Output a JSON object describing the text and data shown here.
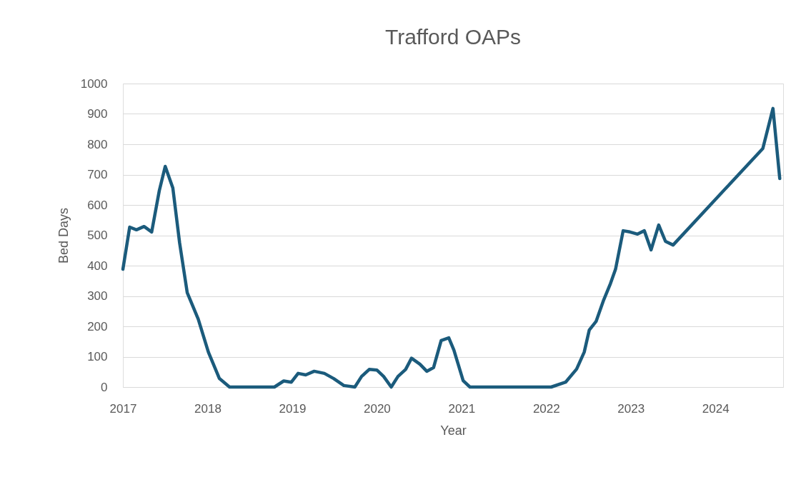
{
  "chart_data": {
    "type": "line",
    "title": "Trafford OAPs",
    "xlabel": "Year",
    "ylabel": "Bed Days",
    "xlim": [
      2017,
      2024.8
    ],
    "xticks": [
      2017,
      2018,
      2019,
      2020,
      2021,
      2022,
      2023,
      2024
    ],
    "ylim": [
      0,
      1000
    ],
    "yticks": [
      0,
      100,
      200,
      300,
      400,
      500,
      600,
      700,
      800,
      900,
      1000
    ],
    "grid": "y",
    "marker": "none",
    "line_style": "solid",
    "series": [
      {
        "color": "#1b5b7c",
        "x": [
          2017.0,
          2017.08,
          2017.16,
          2017.25,
          2017.34,
          2017.43,
          2017.5,
          2017.59,
          2017.67,
          2017.76,
          2017.89,
          2018.01,
          2018.14,
          2018.26,
          2018.79,
          2018.9,
          2018.99,
          2019.07,
          2019.16,
          2019.26,
          2019.38,
          2019.49,
          2019.61,
          2019.74,
          2019.82,
          2019.91,
          2020.0,
          2020.08,
          2020.17,
          2020.25,
          2020.34,
          2020.41,
          2020.51,
          2020.59,
          2020.67,
          2020.76,
          2020.85,
          2020.91,
          2021.02,
          2021.1,
          2022.06,
          2022.23,
          2022.36,
          2022.45,
          2022.51,
          2022.59,
          2022.68,
          2022.76,
          2022.82,
          2022.91,
          2022.99,
          2023.08,
          2023.16,
          2023.24,
          2023.33,
          2023.41,
          2023.5,
          2024.56,
          2024.68,
          2024.76
        ],
        "values": [
          388,
          527,
          518,
          529,
          511,
          647,
          727,
          656,
          475,
          311,
          224,
          115,
          28,
          0,
          0,
          20,
          16,
          45,
          40,
          52,
          45,
          28,
          5,
          0,
          35,
          58,
          56,
          35,
          0,
          35,
          58,
          95,
          75,
          52,
          64,
          153,
          162,
          122,
          21,
          0,
          0,
          16,
          59,
          115,
          188,
          216,
          287,
          341,
          388,
          515,
          511,
          504,
          515,
          452,
          534,
          480,
          468,
          786,
          918,
          687
        ]
      }
    ]
  }
}
